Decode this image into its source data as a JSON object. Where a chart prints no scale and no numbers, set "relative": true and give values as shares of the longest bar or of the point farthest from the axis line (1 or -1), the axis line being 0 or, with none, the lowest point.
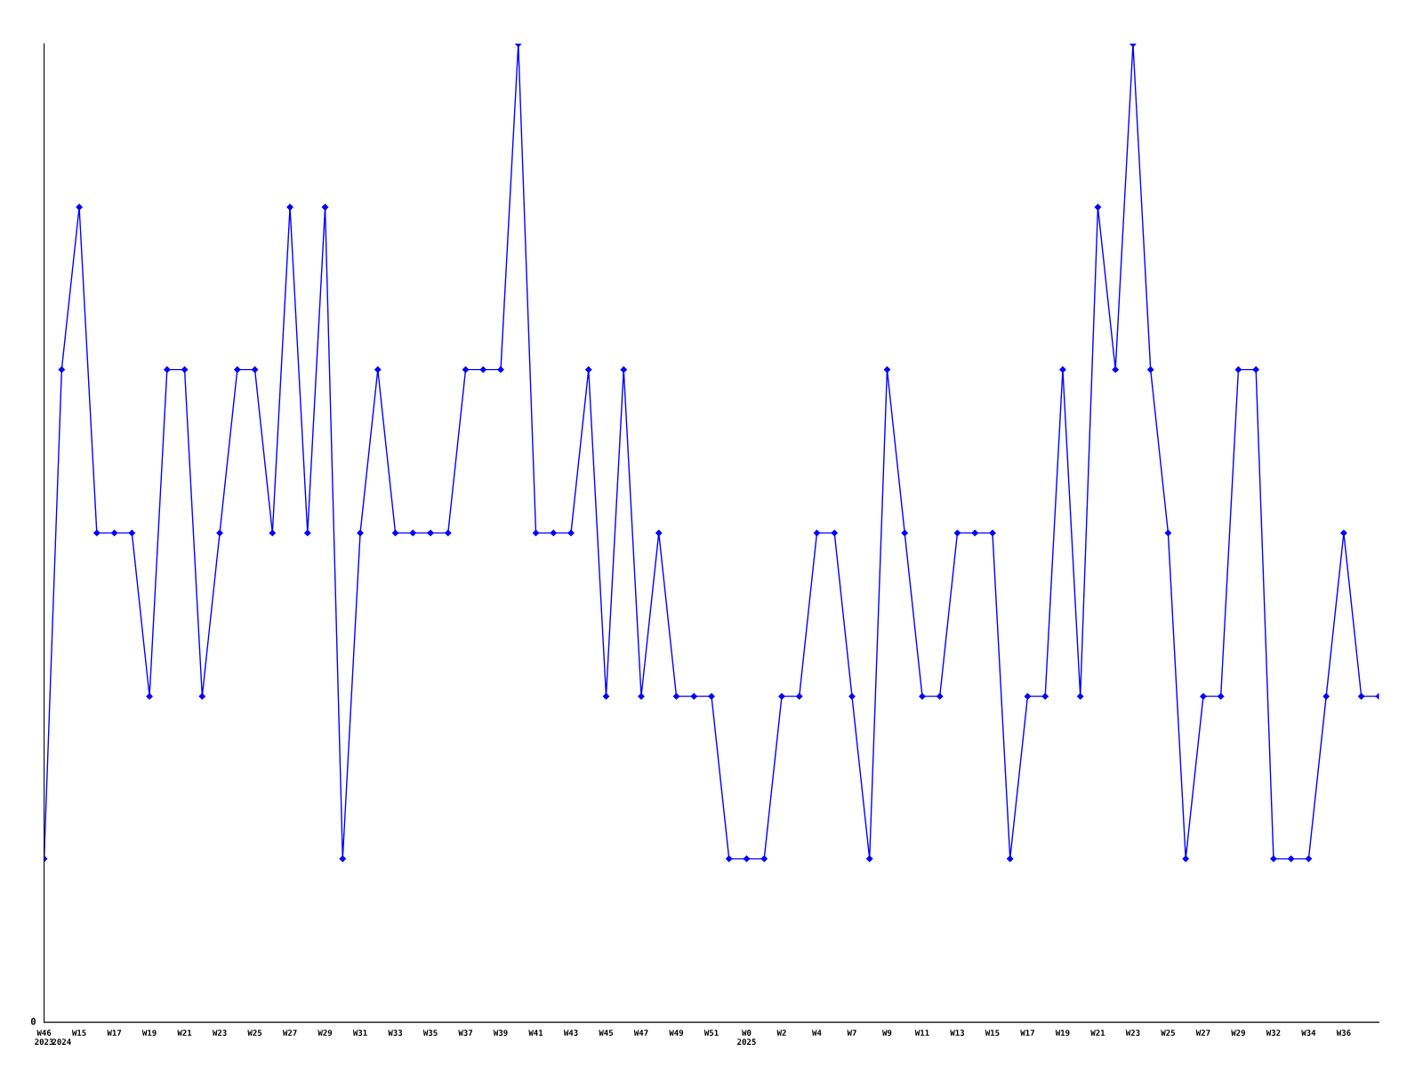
{
  "chart_data": {
    "type": "line",
    "relative": true,
    "marker": "diamond",
    "line_style": "solid",
    "grid": false,
    "legend": false,
    "annotations": [
      "0"
    ],
    "categories": [
      "W46\n2023",
      "\n2024",
      "W15",
      null,
      "W17",
      null,
      "W19",
      null,
      "W21",
      null,
      "W23",
      null,
      "W25",
      null,
      "W27",
      null,
      "W29",
      null,
      "W31",
      null,
      "W33",
      null,
      "W35",
      null,
      "W37",
      null,
      "W39",
      null,
      "W41",
      null,
      "W43",
      null,
      "W45",
      null,
      "W47",
      null,
      "W49",
      null,
      "W51",
      null,
      "W0\n2025",
      null,
      "W2",
      null,
      "W4",
      null,
      "W7",
      null,
      "W9",
      null,
      "W11",
      null,
      "W13",
      null,
      "W15",
      null,
      "W17",
      null,
      "W19",
      null,
      "W21",
      null,
      "W23",
      null,
      "W25",
      null,
      "W27",
      null,
      "W29",
      null,
      "W32",
      null,
      "W34",
      null,
      "W36",
      null,
      null
    ],
    "series": [
      {
        "color": "#0000ff",
        "values": [
          0.167,
          0.667,
          0.833,
          0.5,
          0.5,
          0.5,
          0.333,
          0.667,
          0.667,
          0.333,
          0.5,
          0.667,
          0.667,
          0.5,
          0.833,
          0.5,
          0.833,
          0.167,
          0.5,
          0.667,
          0.5,
          0.5,
          0.5,
          0.5,
          0.667,
          0.667,
          0.667,
          1,
          0.5,
          0.5,
          0.5,
          0.667,
          0.333,
          0.667,
          0.333,
          0.5,
          0.333,
          0.333,
          0.333,
          0.167,
          0.167,
          0.167,
          0.333,
          0.333,
          0.5,
          0.5,
          0.333,
          0.167,
          0.667,
          0.5,
          0.333,
          0.333,
          0.5,
          0.5,
          0.5,
          0.167,
          0.333,
          0.333,
          0.667,
          0.333,
          0.833,
          0.667,
          1,
          0.667,
          0.5,
          0.167,
          0.333,
          0.333,
          0.667,
          0.667,
          0.167,
          0.167,
          0.167,
          0.333,
          0.5,
          0.333,
          0.333
        ]
      }
    ]
  }
}
